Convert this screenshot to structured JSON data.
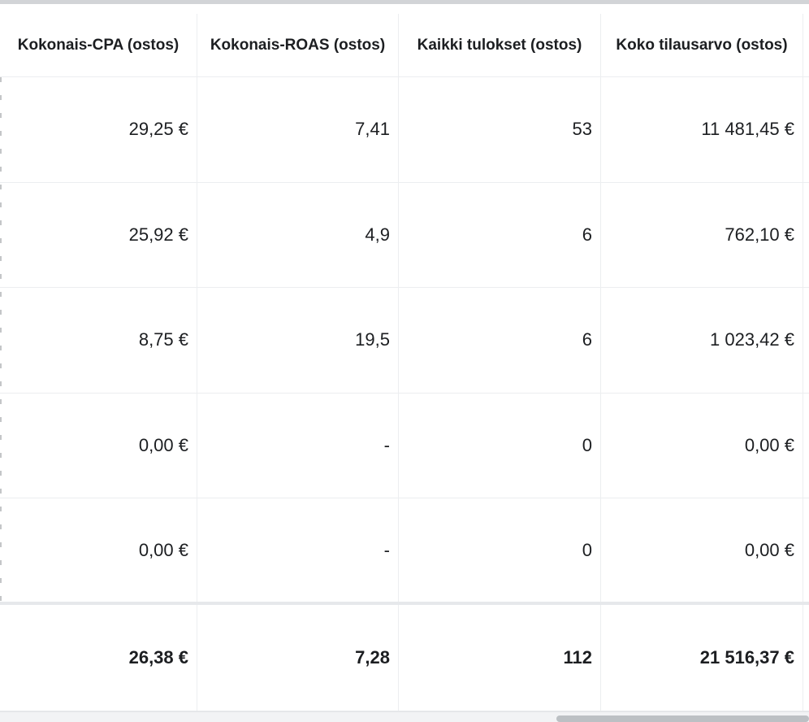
{
  "table": {
    "columns": [
      "Kokonais-CPA (ostos)",
      "Kokonais-ROAS (ostos)",
      "Kaikki tulokset (ostos)",
      "Koko tilausarvo (ostos)"
    ],
    "rows": [
      [
        "29,25 €",
        "7,41",
        "53",
        "11 481,45 €"
      ],
      [
        "25,92 €",
        "4,9",
        "6",
        "762,10 €"
      ],
      [
        "8,75 €",
        "19,5",
        "6",
        "1 023,42 €"
      ],
      [
        "0,00 €",
        "-",
        "0",
        "0,00 €"
      ],
      [
        "0,00 €",
        "-",
        "0",
        "0,00 €"
      ]
    ],
    "totals": [
      "26,38 €",
      "7,28",
      "112",
      "21 516,37 €"
    ]
  },
  "scrollbar": {
    "horizontal_position": 0.69
  }
}
